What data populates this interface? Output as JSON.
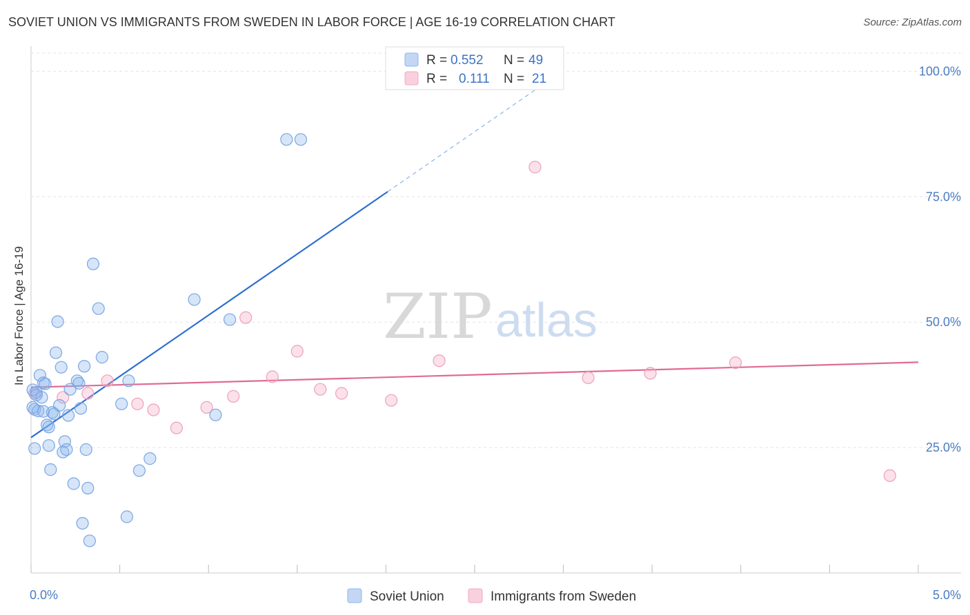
{
  "title": "SOVIET UNION VS IMMIGRANTS FROM SWEDEN IN LABOR FORCE | AGE 16-19 CORRELATION CHART",
  "source": "Source: ZipAtlas.com",
  "watermark": {
    "zip": "ZIP",
    "atlas": "atlas"
  },
  "colors": {
    "blue": "#8ab4ec",
    "blue_line": "#2f6fd0",
    "pink": "#f4a9c0",
    "pink_line": "#e06a94"
  },
  "legend": {
    "rows": [
      {
        "r_label": "R =",
        "r_value": "0.552",
        "n_label": "N =",
        "n_value": "49"
      },
      {
        "r_label": "R =",
        "r_value": "0.111",
        "n_label": "N =",
        "n_value": "21"
      }
    ]
  },
  "chart_data": {
    "type": "scatter",
    "title": "SOVIET UNION VS IMMIGRANTS FROM SWEDEN IN LABOR FORCE | AGE 16-19 CORRELATION CHART",
    "xlabel": "",
    "ylabel": "In Labor Force | Age 16-19",
    "xlim": [
      0,
      5
    ],
    "ylim": [
      0,
      105
    ],
    "x_tick_labels": [
      "0.0%",
      "5.0%"
    ],
    "y_tick_labels": [
      "25.0%",
      "50.0%",
      "75.0%",
      "100.0%"
    ],
    "y_ticks": [
      25,
      50,
      75,
      100
    ],
    "grid": true,
    "legend_position": "top-center",
    "series": [
      {
        "name": "Soviet Union",
        "color": "#8ab4ec",
        "points": [
          [
            0.01,
            36.5
          ],
          [
            0.02,
            32.6
          ],
          [
            0.02,
            24.8
          ],
          [
            0.03,
            36.0
          ],
          [
            0.04,
            32.3
          ],
          [
            0.05,
            39.4
          ],
          [
            0.06,
            35.0
          ],
          [
            0.07,
            37.9
          ],
          [
            0.07,
            32.2
          ],
          [
            0.08,
            37.7
          ],
          [
            0.09,
            29.5
          ],
          [
            0.1,
            25.4
          ],
          [
            0.1,
            29.1
          ],
          [
            0.11,
            20.6
          ],
          [
            0.12,
            32.0
          ],
          [
            0.13,
            31.7
          ],
          [
            0.14,
            43.9
          ],
          [
            0.15,
            50.1
          ],
          [
            0.16,
            33.4
          ],
          [
            0.17,
            41.0
          ],
          [
            0.18,
            24.1
          ],
          [
            0.19,
            26.2
          ],
          [
            0.2,
            24.6
          ],
          [
            0.21,
            31.4
          ],
          [
            0.22,
            36.6
          ],
          [
            0.24,
            17.8
          ],
          [
            0.26,
            38.3
          ],
          [
            0.27,
            37.8
          ],
          [
            0.28,
            32.8
          ],
          [
            0.29,
            9.9
          ],
          [
            0.3,
            41.2
          ],
          [
            0.31,
            24.6
          ],
          [
            0.32,
            16.9
          ],
          [
            0.33,
            6.4
          ],
          [
            0.35,
            61.6
          ],
          [
            0.38,
            52.7
          ],
          [
            0.4,
            43.0
          ],
          [
            0.51,
            33.7
          ],
          [
            0.54,
            11.2
          ],
          [
            0.55,
            38.3
          ],
          [
            0.61,
            20.4
          ],
          [
            0.67,
            22.8
          ],
          [
            0.92,
            54.5
          ],
          [
            1.04,
            31.5
          ],
          [
            1.12,
            50.5
          ],
          [
            1.44,
            86.4
          ],
          [
            1.52,
            86.4
          ],
          [
            0.01,
            33.0
          ],
          [
            0.03,
            35.5
          ]
        ],
        "trend": {
          "x0": 0.0,
          "y0": 27.0,
          "x1_solid": 2.01,
          "y1_solid": 76.0,
          "x1_dash": 2.85,
          "y1_dash": 96.5
        }
      },
      {
        "name": "Immigrants from Sweden",
        "color": "#f4a9c0",
        "points": [
          [
            0.02,
            35.8
          ],
          [
            0.18,
            35.0
          ],
          [
            0.32,
            35.8
          ],
          [
            0.43,
            38.3
          ],
          [
            0.6,
            33.7
          ],
          [
            0.69,
            32.5
          ],
          [
            0.82,
            28.9
          ],
          [
            0.99,
            33.0
          ],
          [
            1.14,
            35.2
          ],
          [
            1.21,
            50.9
          ],
          [
            1.36,
            39.1
          ],
          [
            1.5,
            44.2
          ],
          [
            1.63,
            36.6
          ],
          [
            1.75,
            35.8
          ],
          [
            2.03,
            34.4
          ],
          [
            2.3,
            42.3
          ],
          [
            2.84,
            80.9
          ],
          [
            3.14,
            38.9
          ],
          [
            3.49,
            39.8
          ],
          [
            3.97,
            41.9
          ],
          [
            4.84,
            19.4
          ]
        ],
        "trend": {
          "x0": 0.0,
          "y0": 37.0,
          "x1": 5.0,
          "y1": 42.0
        }
      }
    ]
  }
}
